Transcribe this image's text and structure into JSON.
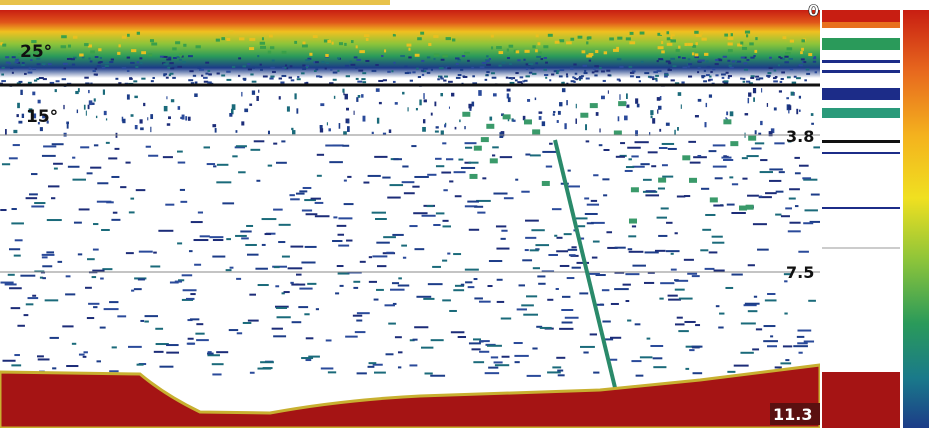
{
  "screen": {
    "depth_labels": [
      "0",
      "3.8",
      "7.5"
    ],
    "bottom_depth": "11.3",
    "temperature_labels": [
      "25°",
      "15°"
    ]
  }
}
